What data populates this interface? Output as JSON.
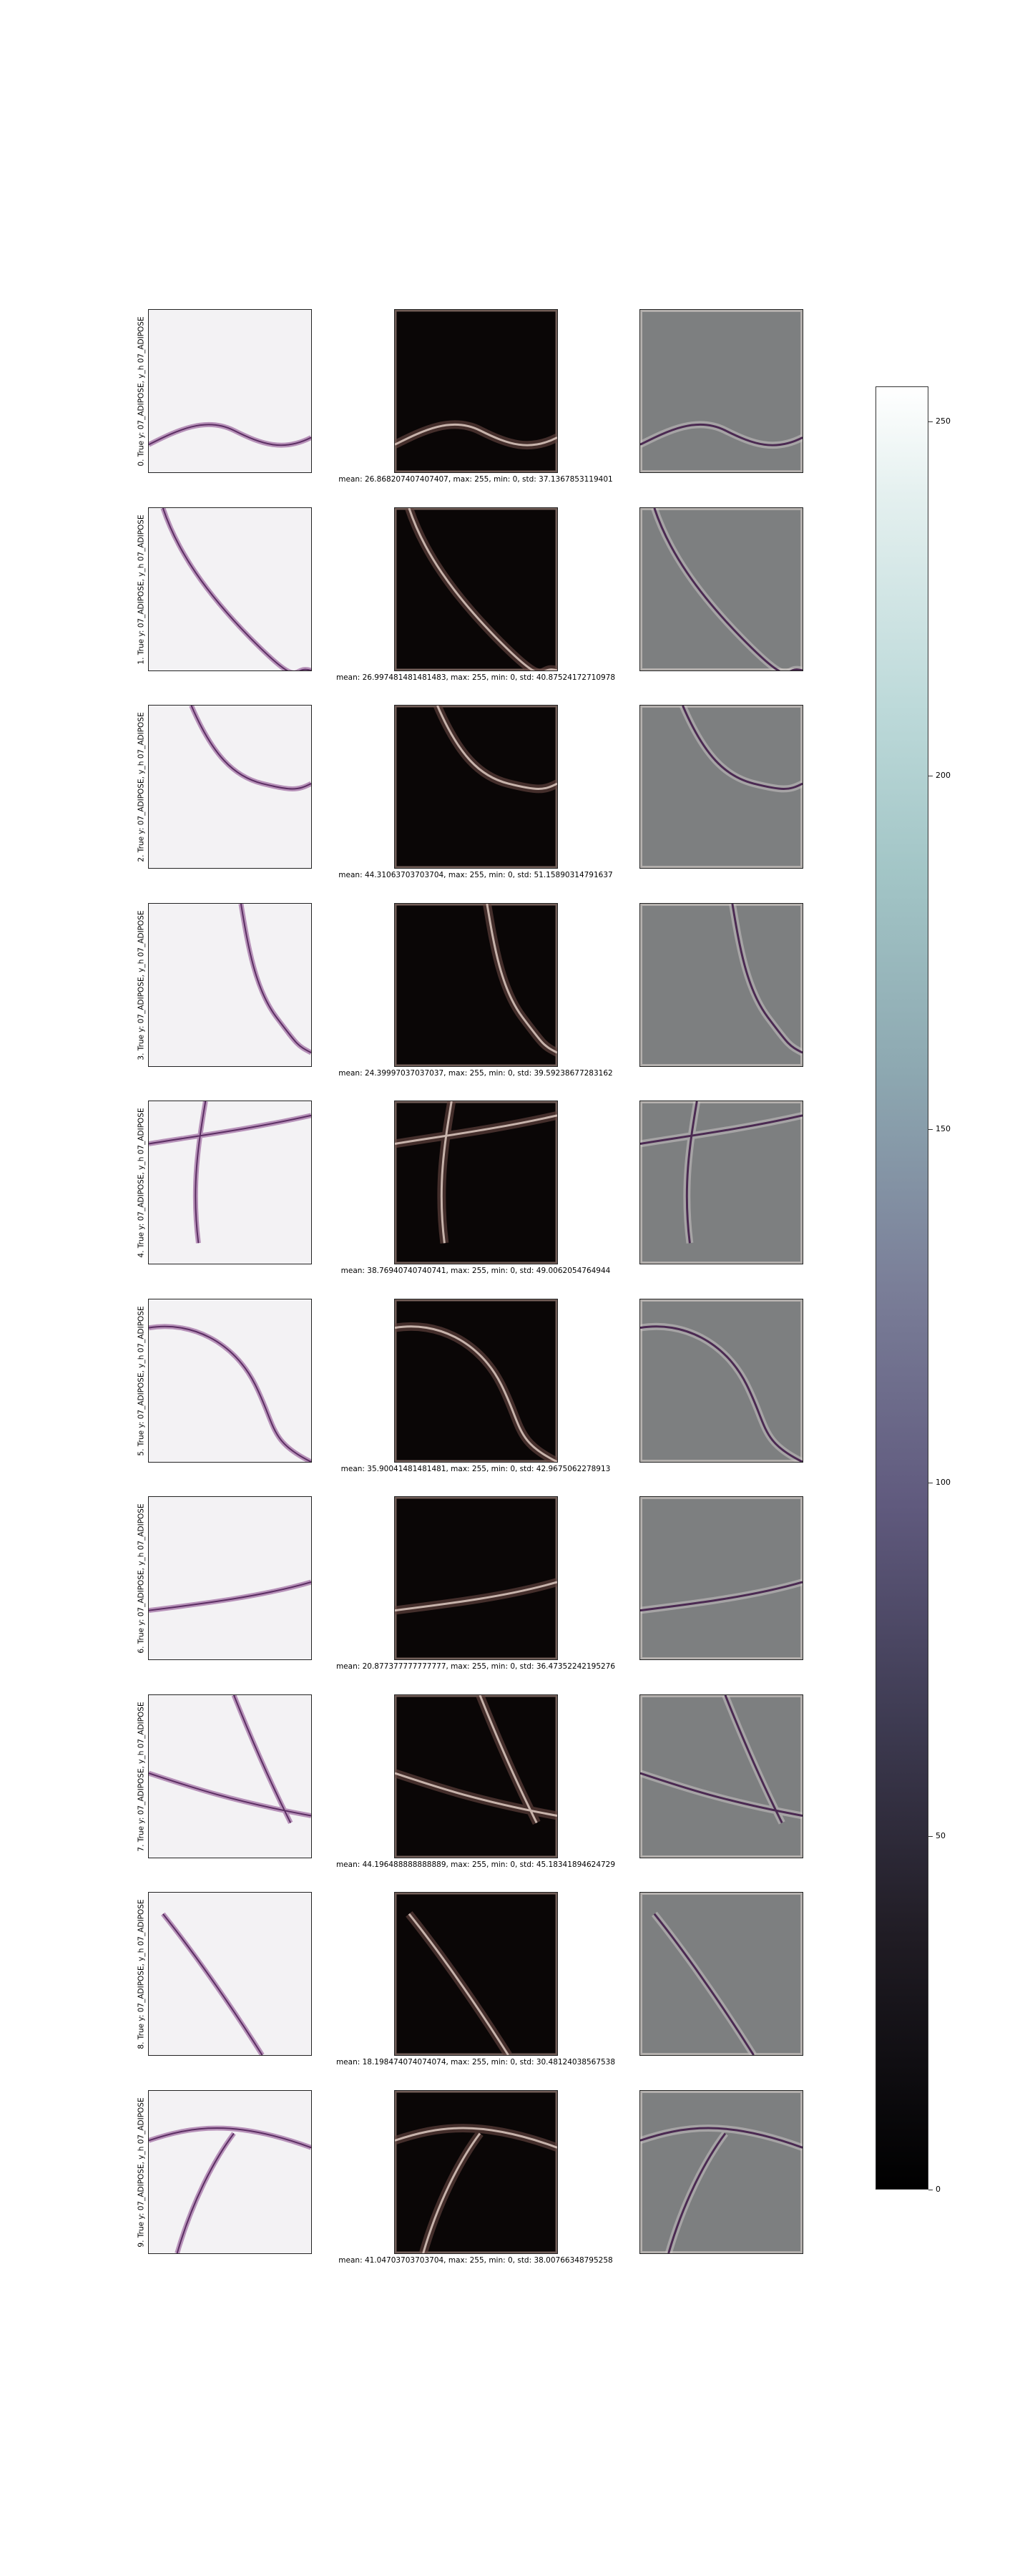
{
  "rows": [
    {
      "label": "0. True y: 07_ADIPOSE, y_h 07_ADIPOSE",
      "stats": "mean: 26.868207407407407, max: 255, min: 0, std: 37.1367853119401"
    },
    {
      "label": "1. True y: 07_ADIPOSE, y_h 07_ADIPOSE",
      "stats": "mean: 26.997481481481483, max: 255, min: 0, std: 40.87524172710978"
    },
    {
      "label": "2. True y: 07_ADIPOSE, y_h 07_ADIPOSE",
      "stats": "mean: 44.31063703703704, max: 255, min: 0, std: 51.15890314791637"
    },
    {
      "label": "3. True y: 07_ADIPOSE, y_h 07_ADIPOSE",
      "stats": "mean: 24.39997037037037, max: 255, min: 0, std: 39.59238677283162"
    },
    {
      "label": "4. True y: 07_ADIPOSE, y_h 07_ADIPOSE",
      "stats": "mean: 38.76940740740741, max: 255, min: 0, std: 49.0062054764944"
    },
    {
      "label": "5. True y: 07_ADIPOSE, y_h 07_ADIPOSE",
      "stats": "mean: 35.90041481481481, max: 255, min: 0, std: 42.9675062278913"
    },
    {
      "label": "6. True y: 07_ADIPOSE, y_h 07_ADIPOSE",
      "stats": "mean: 20.877377777777777, max: 255, min: 0, std: 36.47352242195276"
    },
    {
      "label": "7. True y: 07_ADIPOSE, y_h 07_ADIPOSE",
      "stats": "mean: 44.196488888888889, max: 255, min: 0, std: 45.18341894624729"
    },
    {
      "label": "8. True y: 07_ADIPOSE, y_h 07_ADIPOSE",
      "stats": "mean: 18.198474074074074, max: 255, min: 0, std: 30.48124038567538"
    },
    {
      "label": "9. True y: 07_ADIPOSE, y_h 07_ADIPOSE",
      "stats": "mean: 41.04703703703704, max: 255, min: 0, std: 38.00766348795258"
    }
  ],
  "colorbar": {
    "ticks": [
      "0",
      "50",
      "100",
      "150",
      "200",
      "250"
    ],
    "min": 0,
    "max": 255,
    "colors": [
      "#000000",
      "#3e3b52",
      "#7a7e98",
      "#a2c5c6",
      "#ffffff"
    ]
  }
}
